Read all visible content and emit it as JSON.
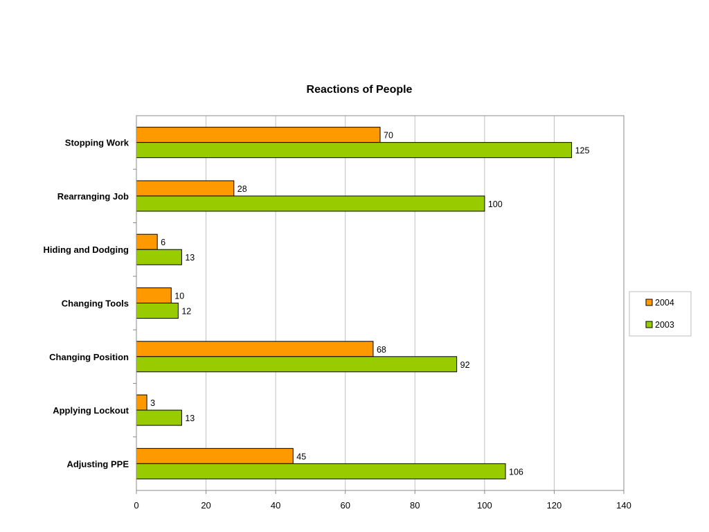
{
  "chart_data": {
    "type": "bar",
    "orientation": "horizontal",
    "title": "Reactions of People",
    "xlabel": "",
    "ylabel": "",
    "xlim": [
      0,
      140
    ],
    "x_ticks": [
      0,
      20,
      40,
      60,
      80,
      100,
      120,
      140
    ],
    "grid": "vertical gridlines",
    "legend_position": "right",
    "categories": [
      "Stopping Work",
      "Rearranging Job",
      "Hiding and Dodging",
      "Changing Tools",
      "Changing Position",
      "Applying Lockout",
      "Adjusting PPE"
    ],
    "series": [
      {
        "name": "2004",
        "color": "#ff9900",
        "values": [
          70,
          28,
          6,
          10,
          68,
          3,
          45
        ]
      },
      {
        "name": "2003",
        "color": "#99cc00",
        "values": [
          125,
          100,
          13,
          12,
          92,
          13,
          106
        ]
      }
    ],
    "data_labels": true
  }
}
